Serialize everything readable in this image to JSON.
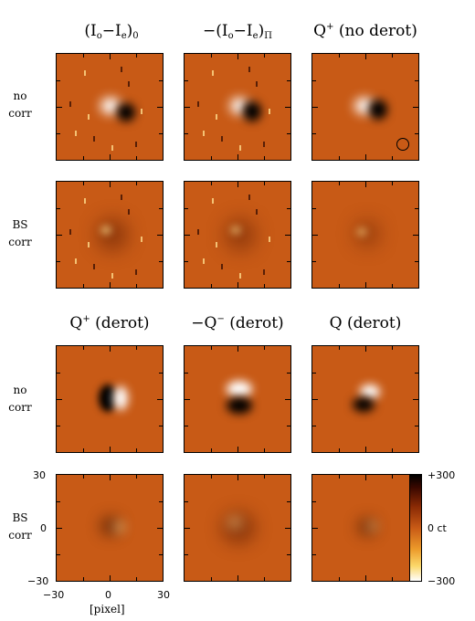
{
  "top_section": {
    "titles": [
      {
        "pre": "(I",
        "a": "o",
        "mid": "−I",
        "b": "e",
        "post": ")",
        "c": "0"
      },
      {
        "pre": "−(I",
        "a": "o",
        "mid": "−I",
        "b": "e",
        "post": ")",
        "c": "Π"
      },
      {
        "pre": "Q",
        "sup": "+",
        "post": " (no derot)"
      }
    ],
    "rows": [
      {
        "label_line1": "no",
        "label_line2": "corr"
      },
      {
        "label_line1": "BS",
        "label_line2": "corr"
      }
    ]
  },
  "bottom_section": {
    "titles": [
      {
        "pre": "Q",
        "sup": "+",
        "post": " (derot)"
      },
      {
        "pre": "−Q",
        "sup": "−",
        "post": " (derot)"
      },
      {
        "pre": "Q",
        "post": " (derot)"
      }
    ],
    "rows": [
      {
        "label_line1": "no",
        "label_line2": "corr"
      },
      {
        "label_line1": "BS",
        "label_line2": "corr"
      }
    ]
  },
  "axes": {
    "x_ticks": [
      "−30",
      "0",
      "30"
    ],
    "y_ticks": [
      "30",
      "0",
      "−30"
    ],
    "x_label": "[pixel]"
  },
  "colorbar": {
    "max_label": "+300",
    "mid_label": "0  ct",
    "min_label": "−300"
  }
}
